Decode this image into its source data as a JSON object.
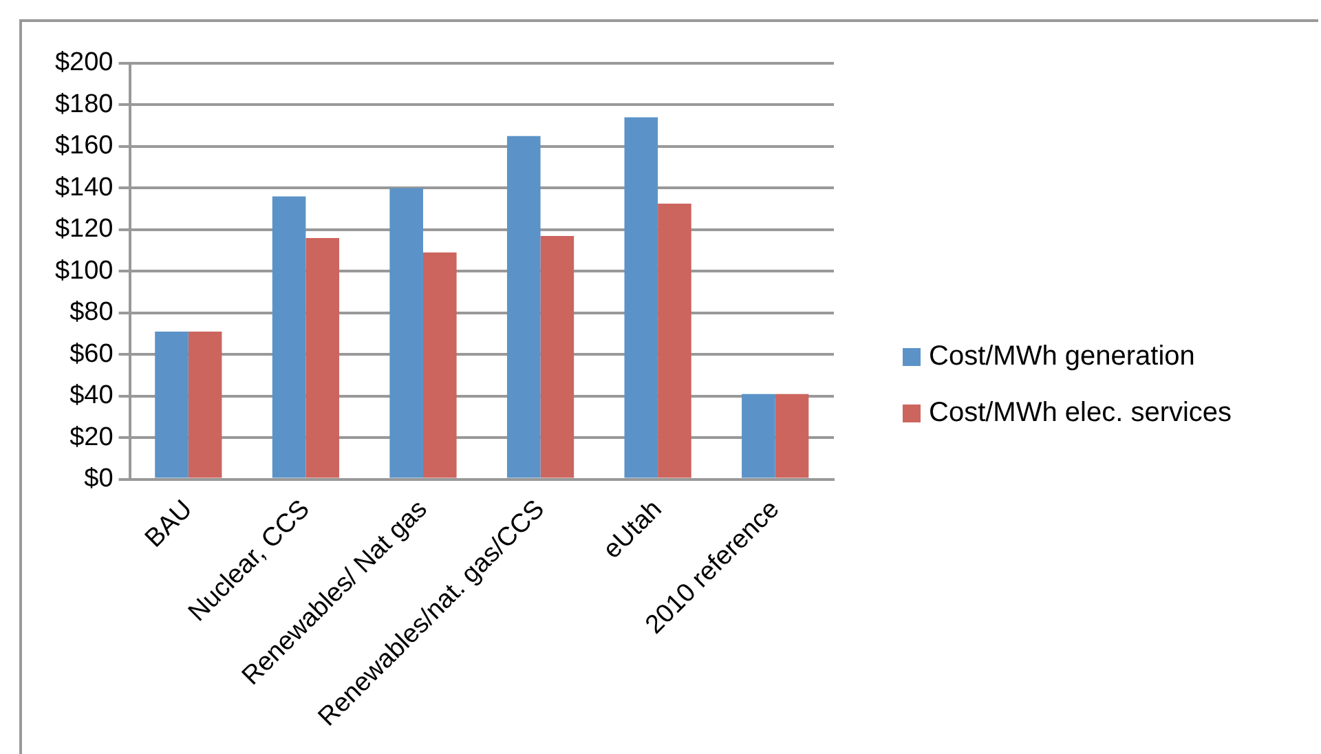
{
  "chart_data": {
    "type": "bar",
    "categories": [
      "BAU",
      "Nuclear, CCS",
      "Renewables/ Nat gas",
      "Renewables/nat. gas/CCS",
      "eUtah",
      "2010 reference"
    ],
    "series": [
      {
        "name": "Cost/MWh generation",
        "color": "#5b93c8",
        "values": [
          71,
          136,
          140,
          165,
          174,
          41
        ]
      },
      {
        "name": "Cost/MWh elec. services",
        "color": "#cc655e",
        "values": [
          71,
          116,
          109,
          117,
          132.5,
          41
        ]
      }
    ],
    "ylim": [
      0,
      200
    ],
    "yticks": [
      {
        "value": 0,
        "label": "$0"
      },
      {
        "value": 20,
        "label": "$20"
      },
      {
        "value": 40,
        "label": "$40"
      },
      {
        "value": 60,
        "label": "$60"
      },
      {
        "value": 80,
        "label": "$80"
      },
      {
        "value": 100,
        "label": "$100"
      },
      {
        "value": 120,
        "label": "$120"
      },
      {
        "value": 140,
        "label": "$140"
      },
      {
        "value": 160,
        "label": "$160"
      },
      {
        "value": 180,
        "label": "$180"
      },
      {
        "value": 200,
        "label": "$200"
      }
    ],
    "grid": "y",
    "legend": "right"
  }
}
